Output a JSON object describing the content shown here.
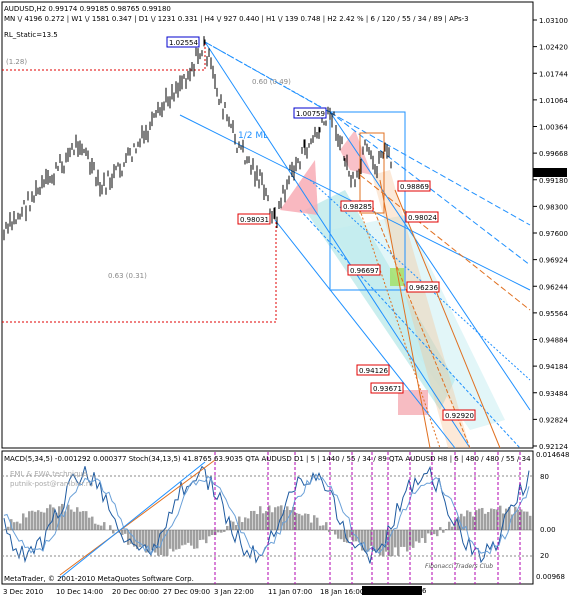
{
  "header": {
    "symbol_line": "AUDUSD,H2  0.99174 0.99185 0.98765 0.99180",
    "tf_line": "MN \\/ 4196   0.272 | W1 \\/ 1581   0.347 | D1 \\/ 1231   0.331 | H4 \\/ 927   0.440 | H1 \\/ 139   0.748 | H2   2.42 %  | 6 / 120 / 55 / 34 / 89 | APs-3",
    "indicator_label": "RL_Static=13.5"
  },
  "price_axis": {
    "ticks": [
      "1.03100",
      "1.02420",
      "1.01744",
      "1.01064",
      "1.00364",
      "0.99668",
      "0.99180",
      "0.98300",
      "0.97600",
      "0.96924",
      "0.96244",
      "0.95564",
      "0.94884",
      "0.94184",
      "0.93484",
      "0.92824",
      "0.92124"
    ],
    "current_price": "0.99180"
  },
  "chart_labels": {
    "high_price": "1.02554",
    "second_high": "1.00759",
    "low_left": "0.98031",
    "p_098869": "0.98869",
    "p_098285": "0.98285",
    "p_098024": "0.98024",
    "p_096697": "0.96697",
    "p_096236": "0.96236",
    "p_094126": "0.94126",
    "p_093671": "0.93671",
    "p_092920": "0.92920",
    "ratio_top": "(1.28)",
    "ratio_mid": "0.60 (0.49)",
    "ratio_low": "0.63 (0.31)",
    "ml_label": "1/2 ML"
  },
  "subwindow": {
    "title_line": "MACD(5,34,5)  -0.001292  0.000377   Stoch(34,13,5)  41.8765  63.9035   QTA  AUDUSD  D1 | 5 | 1440 / 55 / 34 / 89   QTA  AUDUSD  H8 | 5 | 480 / 480 / 55 / 34",
    "watermark1": "EML & EWA  technique",
    "watermark2": "putnik-post@rambler.ru",
    "copyright": "MetaTrader, © 2001-2010 MetaQuotes Software Corp.",
    "club": "Fibonacci Traders Club",
    "ticks": [
      "0.014648",
      "80",
      "20",
      "0.00",
      "0.00968"
    ]
  },
  "time_axis": {
    "labels": [
      "3 Dec 2010",
      "10 Dec 14:00",
      "20 Dec 00:00",
      "27 Dec 09:00",
      "3 Jan 22:00",
      "11 Jan 07:00",
      "18 Jan 16:00",
      "2011.01.27 10:56"
    ]
  },
  "colors": {
    "fork_blue": "#1e90ff",
    "fork_orange": "#e07020",
    "level_red": "#e00000",
    "macd_gray": "#a0a0a0",
    "teal": "#7ecfd0",
    "pink": "#f4a0a8"
  }
}
